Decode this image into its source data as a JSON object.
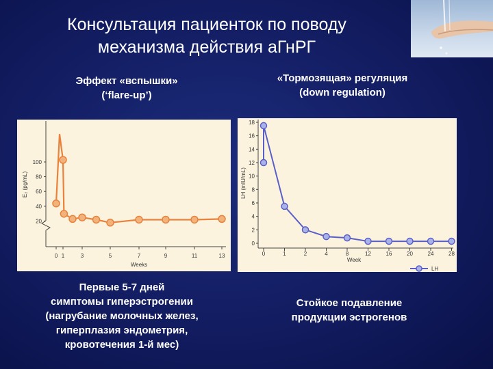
{
  "title": {
    "line1": "Консультация пациенток по поводу",
    "line2": "механизма действия аГнРГ"
  },
  "left": {
    "heading_line1": "Эффект «вспышки»",
    "heading_line2": "(‘flare-up’)",
    "caption_lines": [
      "Первые 5-7 дней",
      "симптомы гиперэстрогении",
      "(нагрубание молочных желез,",
      "гиперплазия эндометрия,",
      "кровотечения 1-й мес)"
    ]
  },
  "right": {
    "heading_line1": "«Тормозящая» регуляция",
    "heading_line2": "(down regulation)",
    "caption_lines": [
      "Стойкое подавление",
      "продукции эстрогенов"
    ]
  },
  "colors": {
    "left_series": "#e8823c",
    "left_marker_fill": "#f2b27c",
    "right_series": "#5a5fc8",
    "right_marker_fill": "#aab3e8",
    "panel_bg": "#fbf3de"
  },
  "chart_data": [
    {
      "type": "line",
      "ylabel": "E₂ (pg/mL)",
      "xlabel": "Weeks",
      "x_ticks": [
        "0",
        "1",
        "3",
        "5",
        "7",
        "9",
        "11",
        "13"
      ],
      "y_ticks": [
        20,
        40,
        60,
        80,
        100
      ],
      "ylim": [
        0,
        105
      ],
      "axis_break": true,
      "series": [
        {
          "x": [
            0,
            0.5,
            1,
            1.1,
            2,
            3,
            4,
            5,
            7,
            9,
            11,
            13
          ],
          "y": [
            41,
            135,
            100,
            27,
            20,
            22,
            19,
            15,
            19,
            19,
            19,
            20
          ]
        }
      ]
    },
    {
      "type": "line",
      "ylabel": "LH (mIU/mL)",
      "xlabel": "Week",
      "x_ticks": [
        "0",
        "1",
        "2",
        "4",
        "8",
        "12",
        "16",
        "20",
        "24",
        "28"
      ],
      "y_ticks": [
        0,
        2,
        4,
        6,
        8,
        10,
        12,
        14,
        16,
        18
      ],
      "ylim": [
        0,
        18
      ],
      "legend": "bottom-right",
      "series": [
        {
          "name": "LH",
          "x_index": [
            0,
            0,
            1,
            2,
            3,
            4,
            5,
            6,
            7,
            8,
            9
          ],
          "y": [
            12,
            17.5,
            5.5,
            2,
            1,
            0.8,
            0.3,
            0.3,
            0.3,
            0.3,
            0.3
          ]
        }
      ]
    }
  ]
}
